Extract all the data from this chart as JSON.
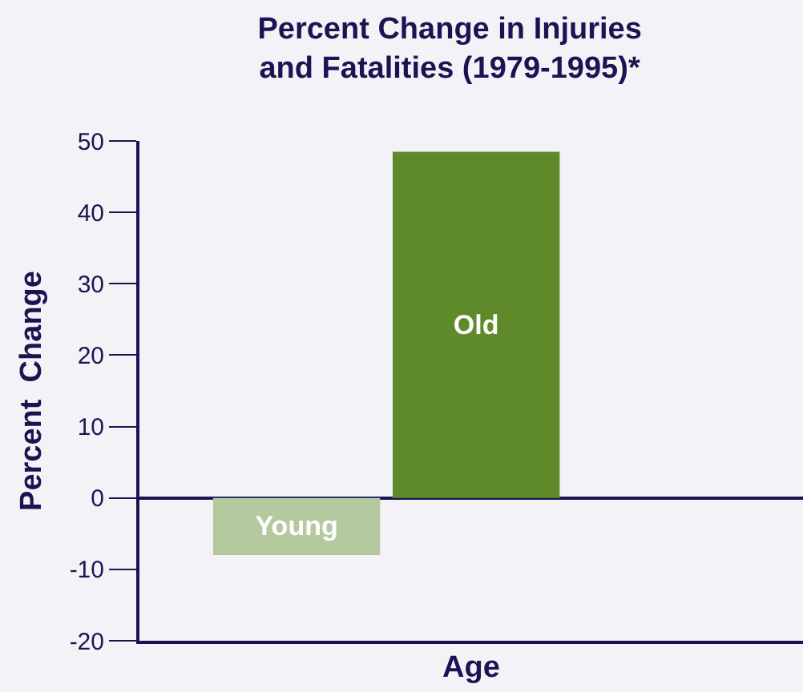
{
  "chart_data": {
    "type": "bar",
    "title": "Percent Change in Injuries\nand Fatalities (1979-1995)*",
    "xlabel": "Age",
    "ylabel": "Percent  Change",
    "categories": [
      "Young",
      "Old"
    ],
    "values": [
      -8,
      48.5
    ],
    "colors": [
      "#b5c99e",
      "#5e8a2a"
    ],
    "ylim": [
      -20,
      50
    ],
    "yticks": [
      -20,
      -10,
      0,
      10,
      20,
      30,
      40,
      50
    ],
    "grid": false,
    "tick_labels": "y"
  }
}
